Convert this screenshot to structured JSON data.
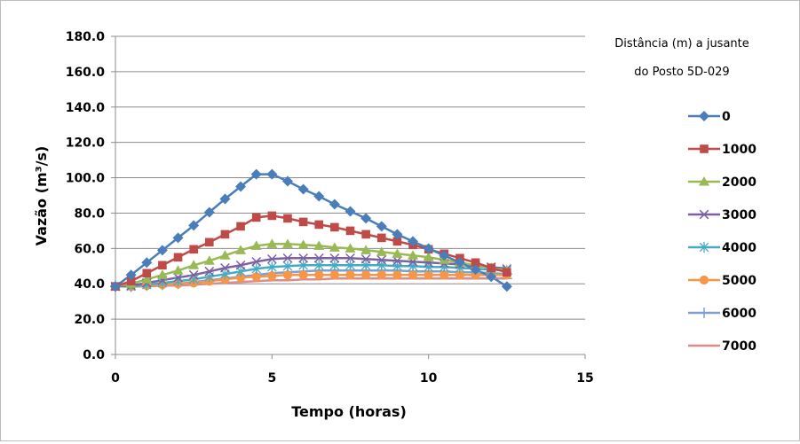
{
  "chart_data": {
    "type": "line",
    "title": "",
    "xlabel": "Tempo (horas)",
    "ylabel": "Vazão (m³/s)",
    "xlim": [
      0,
      15
    ],
    "ylim": [
      0,
      180
    ],
    "x_ticks": [
      "0",
      "5",
      "10",
      "15"
    ],
    "y_ticks": [
      "0.0",
      "20.0",
      "40.0",
      "60.0",
      "80.0",
      "100.0",
      "120.0",
      "140.0",
      "160.0",
      "180.0"
    ],
    "grid": "horizontal",
    "legend": {
      "title_line1": "Distância (m) a jusante",
      "title_line2": "do Posto 5D-029",
      "placement": "right"
    },
    "x": [
      0,
      0.5,
      1,
      1.5,
      2,
      2.5,
      3,
      3.5,
      4,
      4.5,
      5,
      5.5,
      6,
      6.5,
      7,
      7.5,
      8,
      8.5,
      9,
      9.5,
      10,
      10.5,
      11,
      11.5,
      12,
      12.5
    ],
    "series": [
      {
        "name": "0",
        "color": "#4a7ebb",
        "marker": "diamond",
        "values": [
          38.5,
          45,
          52,
          59,
          66,
          73,
          80.5,
          88,
          95,
          102,
          102,
          98,
          93.5,
          89.5,
          85,
          81,
          77,
          72.5,
          68,
          64,
          60,
          56,
          52,
          48,
          44,
          38.5
        ]
      },
      {
        "name": "1000",
        "color": "#be4b48",
        "marker": "square",
        "values": [
          38.5,
          41.5,
          46,
          50.5,
          55,
          59.5,
          63.5,
          68,
          72.5,
          77.5,
          78.5,
          77,
          75,
          73.5,
          72,
          70,
          68,
          66,
          64,
          62,
          59.5,
          57,
          54.5,
          52,
          49,
          46.5
        ]
      },
      {
        "name": "2000",
        "color": "#98b954",
        "marker": "triangle",
        "values": [
          38.5,
          40,
          42.5,
          45,
          47.5,
          50.5,
          53,
          56,
          59,
          61.5,
          62.5,
          62.5,
          62,
          61.5,
          60.5,
          60,
          59,
          58,
          57,
          56,
          55,
          53.5,
          52,
          50.5,
          49,
          47.5
        ]
      },
      {
        "name": "3000",
        "color": "#7d60a0",
        "marker": "x",
        "values": [
          38.5,
          39,
          40.5,
          42,
          43.5,
          45,
          47,
          49,
          50.5,
          52.5,
          54,
          54.5,
          54.5,
          54.5,
          54.5,
          54.5,
          54,
          53.5,
          53,
          52.5,
          52,
          51.5,
          51,
          50,
          49.5,
          48.5
        ]
      },
      {
        "name": "4000",
        "color": "#46aac5",
        "marker": "star",
        "values": [
          38.5,
          38.5,
          39.5,
          40.5,
          41.5,
          42.5,
          44,
          45.5,
          47,
          48.5,
          49.5,
          50,
          50.5,
          50.5,
          50.5,
          50.5,
          50.5,
          50.5,
          50,
          50,
          49.5,
          49.5,
          49,
          48.5,
          48,
          47.5
        ]
      },
      {
        "name": "5000",
        "color": "#f79646",
        "marker": "circle",
        "values": [
          38.5,
          38.5,
          39,
          39.5,
          40,
          40.5,
          41.5,
          42.5,
          43.5,
          44,
          44.5,
          45,
          45,
          45,
          45,
          45,
          45,
          45,
          45,
          45,
          45,
          45,
          45,
          45,
          45,
          45
        ]
      },
      {
        "name": "6000",
        "color": "#7e9fcf",
        "marker": "plus",
        "values": [
          38.5,
          38.5,
          39,
          39.5,
          40,
          41,
          42,
          43,
          44,
          45,
          46,
          46.5,
          47,
          47.5,
          47.5,
          47.5,
          47.5,
          47.5,
          47.5,
          47,
          47,
          47,
          46.5,
          46.5,
          46,
          45.5
        ]
      },
      {
        "name": "7000",
        "color": "#dc8b8a",
        "marker": "dash",
        "values": [
          38.5,
          38.5,
          38.5,
          39,
          39,
          39.5,
          40,
          40.5,
          41,
          41.5,
          42,
          42,
          42.5,
          42.5,
          43,
          43,
          43,
          43,
          43,
          43,
          43,
          43,
          43,
          43,
          43,
          43
        ]
      }
    ]
  }
}
